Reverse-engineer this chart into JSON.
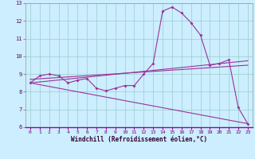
{
  "xlabel": "Windchill (Refroidissement éolien,°C)",
  "bg_color": "#cceeff",
  "grid_color": "#99cccc",
  "line_color": "#993399",
  "xlim": [
    -0.5,
    23.5
  ],
  "ylim": [
    6,
    13
  ],
  "yticks": [
    6,
    7,
    8,
    9,
    10,
    11,
    12,
    13
  ],
  "xticks": [
    0,
    1,
    2,
    3,
    4,
    5,
    6,
    7,
    8,
    9,
    10,
    11,
    12,
    13,
    14,
    15,
    16,
    17,
    18,
    19,
    20,
    21,
    22,
    23
  ],
  "series1_x": [
    0,
    1,
    2,
    3,
    4,
    5,
    6,
    7,
    8,
    9,
    10,
    11,
    12,
    13,
    14,
    15,
    16,
    17,
    18,
    19,
    20,
    21,
    22,
    23
  ],
  "series1_y": [
    8.5,
    8.9,
    9.0,
    8.9,
    8.5,
    8.65,
    8.75,
    8.2,
    8.05,
    8.2,
    8.35,
    8.35,
    9.0,
    9.6,
    12.55,
    12.78,
    12.45,
    11.9,
    11.2,
    9.5,
    9.6,
    9.8,
    7.1,
    6.2
  ],
  "series2_x": [
    0,
    23
  ],
  "series2_y": [
    8.5,
    9.75
  ],
  "series3_x": [
    0,
    23
  ],
  "series3_y": [
    8.5,
    6.2
  ],
  "series4_x": [
    0,
    23
  ],
  "series4_y": [
    8.7,
    9.5
  ]
}
